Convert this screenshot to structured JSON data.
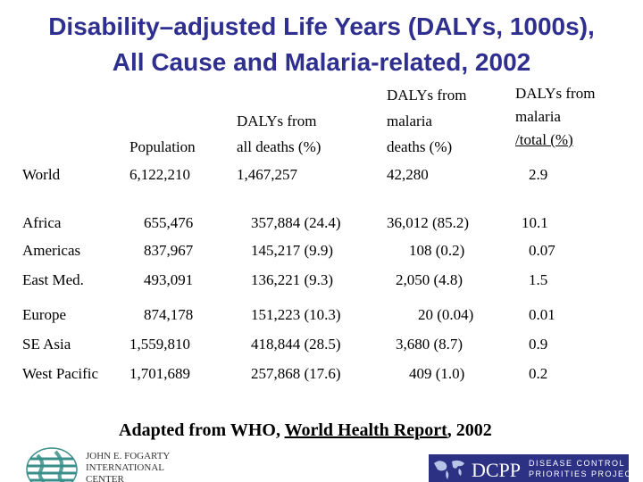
{
  "title": {
    "line1": "Disability–adjusted Life Years (DALYs, 1000s),",
    "line2": "All Cause and Malaria-related, 2002"
  },
  "headers": {
    "population": "Population",
    "all_deaths_1": "DALYs from",
    "all_deaths_2": "all deaths (%)",
    "malaria_deaths_1": "DALYs from",
    "malaria_deaths_2": "malaria",
    "malaria_deaths_3": "deaths (%)",
    "malaria_total_1": "DALYs from",
    "malaria_total_2": "malaria",
    "malaria_total_3": "/total (%)"
  },
  "rows": [
    {
      "region": "World",
      "population": "6,122,210",
      "all_deaths": "1,467,257",
      "malaria_deaths": "42,280",
      "malaria_total": "2.9"
    },
    {
      "region": "Africa",
      "population": "655,476",
      "all_deaths": "357,884 (24.4)",
      "malaria_deaths": "36,012 (85.2)",
      "malaria_total": "10.1"
    },
    {
      "region": "Americas",
      "population": "837,967",
      "all_deaths": "145,217 (9.9)",
      "malaria_deaths": "108 (0.2)",
      "malaria_total": "0.07"
    },
    {
      "region": "East Med.",
      "population": "493,091",
      "all_deaths": "136,221 (9.3)",
      "malaria_deaths": "2,050 (4.8)",
      "malaria_total": "1.5"
    },
    {
      "region": "Europe",
      "population": "874,178",
      "all_deaths": "151,223 (10.3)",
      "malaria_deaths": "20 (0.04)",
      "malaria_total": "0.01"
    },
    {
      "region": "SE Asia",
      "population": "1,559,810",
      "all_deaths": "418,844 (28.5)",
      "malaria_deaths": "3,680 (8.7)",
      "malaria_total": "0.9"
    },
    {
      "region": "West Pacific",
      "population": "1,701,689",
      "all_deaths": "257,868 (17.6)",
      "malaria_deaths": "409 (1.0)",
      "malaria_total": "0.2"
    }
  ],
  "source": {
    "prefix": "Adapted from WHO, ",
    "report": "World Health Report",
    "suffix": ", 2002"
  },
  "logos": {
    "fogarty_line1": "JOHN E. FOGARTY",
    "fogarty_line2": "INTERNATIONAL",
    "fogarty_line3": "CENTER",
    "dcpp_name": "DCPP",
    "dcpp_line1": "DISEASE CONTROL",
    "dcpp_line2": "PRIORITIES PROJECT"
  },
  "colors": {
    "title": "#2e2f8f",
    "dcpp_bg": "#2c3183",
    "logo_green": "#3a8f8a"
  }
}
